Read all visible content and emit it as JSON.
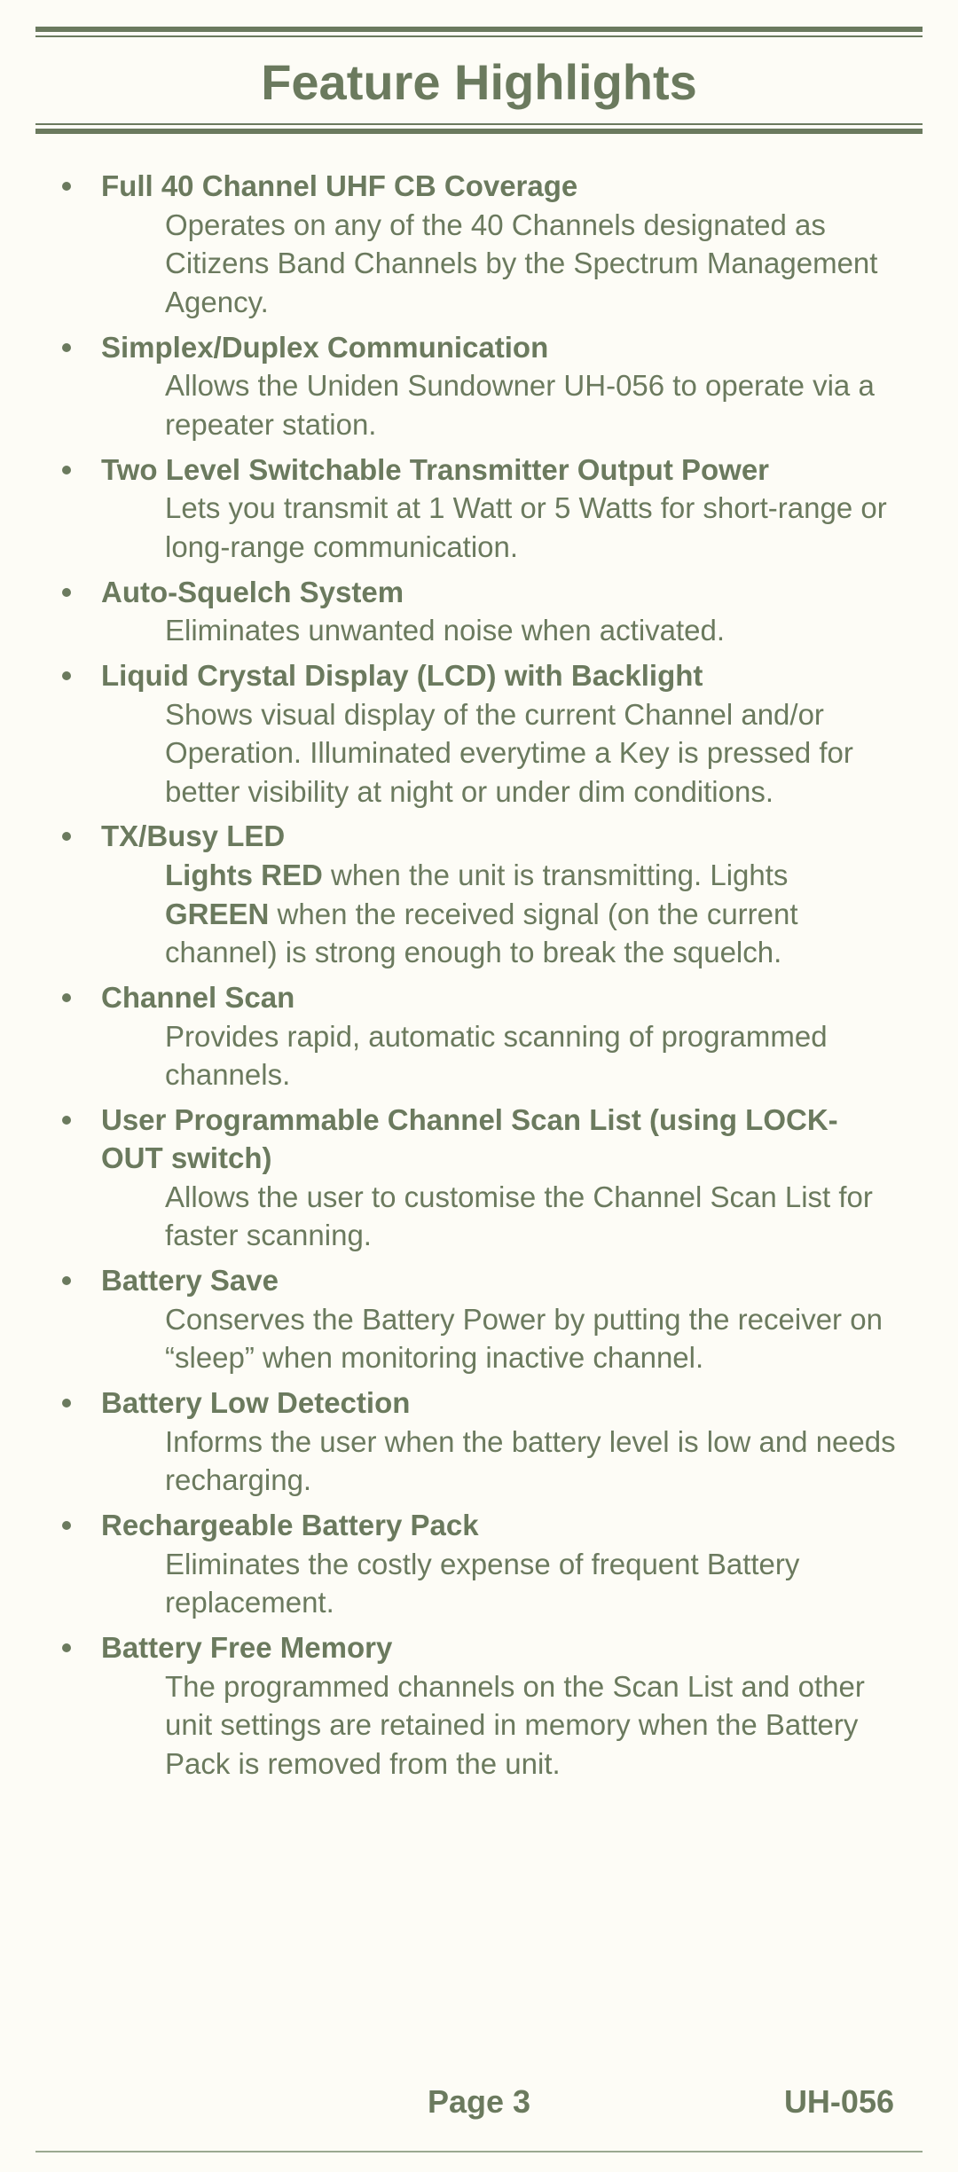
{
  "colors": {
    "text": "#6b7a5e",
    "background": "#fdfcf6",
    "rule": "#6b7a5e",
    "bottom_line": "#9aa890"
  },
  "typography": {
    "title_fontsize": 56,
    "body_fontsize": 33,
    "footer_fontsize": 36,
    "font_family": "Arial, Helvetica, sans-serif"
  },
  "title": "Feature Highlights",
  "features": [
    {
      "heading": "Full 40 Channel UHF CB Coverage",
      "desc": "Operates on any of the 40 Channels designated as Citizens Band Channels by the Spectrum Management Agency."
    },
    {
      "heading": "Simplex/Duplex Communication",
      "desc": "Allows the Uniden Sundowner UH-056 to operate via a repeater station."
    },
    {
      "heading": "Two Level Switchable Transmitter Output Power",
      "desc": "Lets you transmit at 1 Watt or 5 Watts for short-range or long-range communication."
    },
    {
      "heading": "Auto-Squelch System",
      "desc": "Eliminates unwanted noise when activated."
    },
    {
      "heading": "Liquid Crystal Display (LCD) with Backlight",
      "desc": "Shows visual display of the current Channel and/or Operation. Illuminated everytime a Key is pressed for better visibility at night or under dim conditions."
    },
    {
      "heading": "TX/Busy LED",
      "desc_html": "<span class=\"inline-bold\">Lights RED</span> when the unit is transmitting. Lights <span class=\"inline-bold\">GREEN</span> when the received signal (on the current channel) is strong enough to break the squelch."
    },
    {
      "heading": "Channel Scan",
      "desc": "Provides rapid, automatic scanning of programmed channels."
    },
    {
      "heading": "User Programmable Channel Scan List (using LOCK-OUT switch)",
      "desc": "Allows the user to customise the Channel Scan List for faster scanning."
    },
    {
      "heading": "Battery Save",
      "desc": "Conserves the Battery Power by putting the receiver on “sleep” when monitoring inactive channel."
    },
    {
      "heading": "Battery Low Detection",
      "desc": "Informs the user when the battery level is low and needs recharging."
    },
    {
      "heading": "Rechargeable Battery Pack",
      "desc": "Eliminates the costly expense of frequent Battery replacement."
    },
    {
      "heading": "Battery Free Memory",
      "desc": "The programmed channels on the Scan List and other unit settings are retained in memory when the Battery Pack is removed from the unit."
    }
  ],
  "footer": {
    "page_label": "Page 3",
    "model": "UH-056"
  }
}
